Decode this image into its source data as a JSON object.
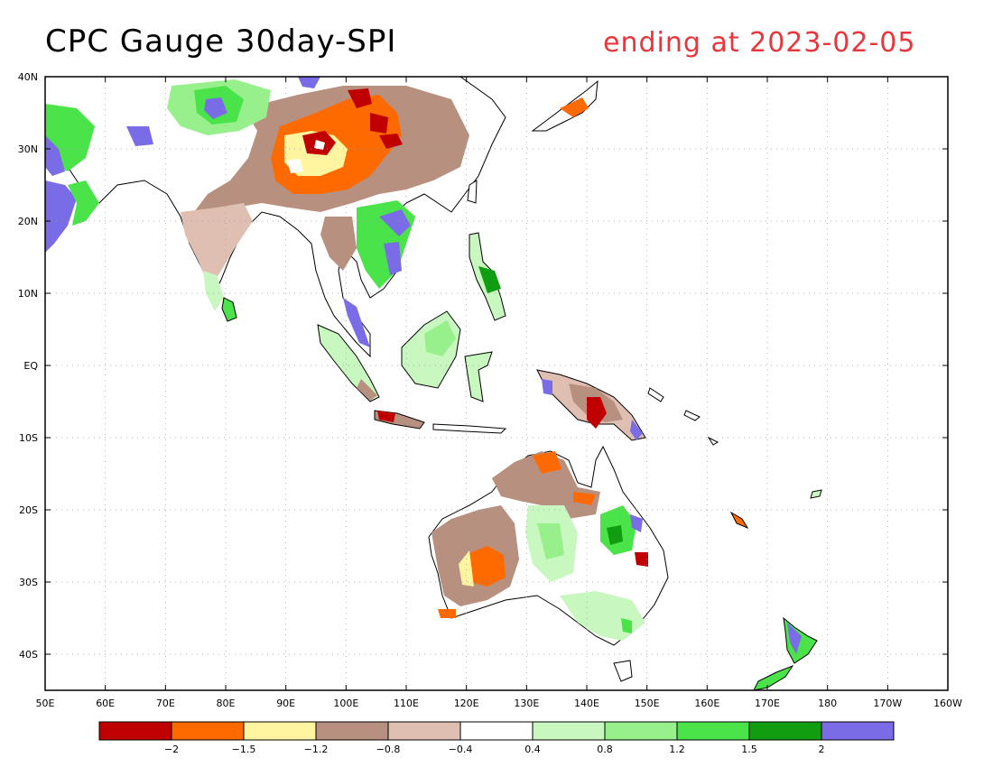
{
  "title": "CPC Gauge 30day-SPI",
  "subtitle": "ending at 2023-02-05",
  "lon_ticks": [
    "50E",
    "60E",
    "70E",
    "80E",
    "90E",
    "100E",
    "110E",
    "120E",
    "130E",
    "140E",
    "150E",
    "160E",
    "170E",
    "180",
    "170W",
    "160W"
  ],
  "lat_ticks": [
    "40N",
    "30N",
    "20N",
    "10N",
    "EQ",
    "10S",
    "20S",
    "30S",
    "40S"
  ],
  "legend": {
    "colors": [
      "#c00000",
      "#ff6a00",
      "#fff5a0",
      "#b89080",
      "#e0bfb3",
      "#ffffff",
      "#c8f7c0",
      "#98f08c",
      "#4ae44a",
      "#109e10",
      "#7a6ce6"
    ],
    "labels": [
      "-2",
      "-1.5",
      "-1.2",
      "-0.8",
      "-0.4",
      "0.4",
      "0.8",
      "1.2",
      "1.5",
      "2"
    ]
  },
  "colors": {
    "dry_severe": "#c00000",
    "dry_strong": "#ff6a00",
    "dry_moderate": "#fff5a0",
    "dry_mild": "#b89080",
    "dry_slight": "#e0bfb3",
    "wet_slight": "#c8f7c0",
    "wet_mild": "#98f08c",
    "wet_moderate": "#4ae44a",
    "wet_strong": "#109e10",
    "wet_severe": "#7a6ce6"
  }
}
